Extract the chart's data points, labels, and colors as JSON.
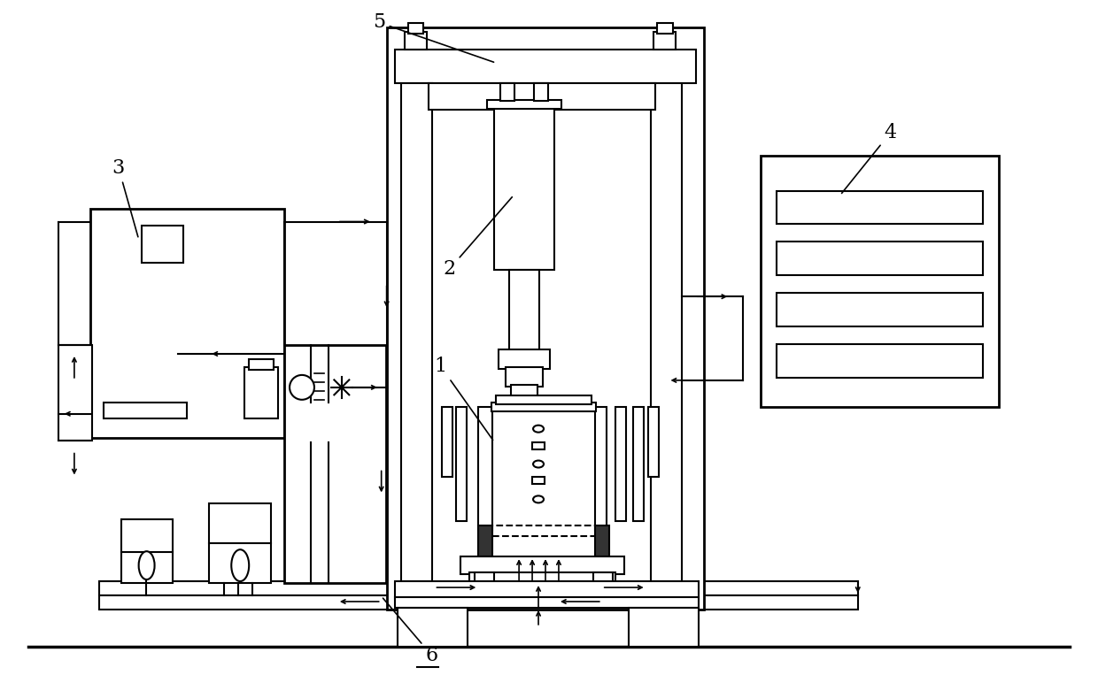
{
  "bg_color": "#ffffff",
  "line_color": "#000000",
  "lw": 1.5,
  "lw_thick": 2.0,
  "fig_width": 12.4,
  "fig_height": 7.89
}
